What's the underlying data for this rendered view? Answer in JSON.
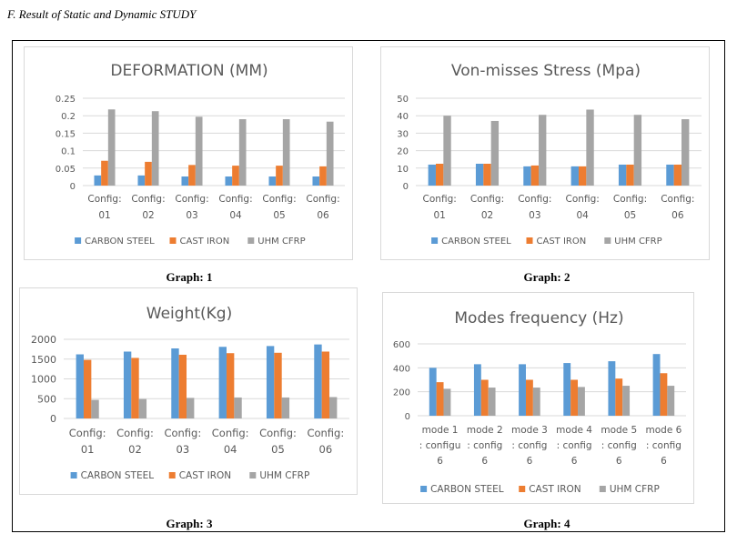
{
  "heading": "F.  Result of Static and Dynamic STUDY",
  "colors": {
    "carbon_steel": "#5b9bd5",
    "cast_iron": "#ed7d31",
    "uhm_cfrp": "#a5a5a5",
    "grid": "#d9d9d9",
    "text": "#595959"
  },
  "captions": [
    "Graph:  1",
    "Graph:  2",
    "Graph:  3",
    "Graph:  4"
  ],
  "chart_data": [
    {
      "type": "bar",
      "title": "DEFORMATION (MM)",
      "categories": [
        [
          "Config:",
          "01"
        ],
        [
          "Config:",
          "02"
        ],
        [
          "Config:",
          "03"
        ],
        [
          "Config:",
          "04"
        ],
        [
          "Config:",
          "05"
        ],
        [
          "Config:",
          "06"
        ]
      ],
      "series": [
        {
          "name": "CARBON STEEL",
          "values": [
            0.029,
            0.029,
            0.026,
            0.026,
            0.026,
            0.026
          ]
        },
        {
          "name": "CAST IRON",
          "values": [
            0.071,
            0.068,
            0.059,
            0.057,
            0.057,
            0.055
          ]
        },
        {
          "name": "UHM CFRP",
          "values": [
            0.218,
            0.213,
            0.197,
            0.19,
            0.19,
            0.183
          ]
        }
      ],
      "ylim": [
        0,
        0.25
      ],
      "yticks": [
        "0",
        "0.05",
        "0.1",
        "0.15",
        "0.2",
        "0.25"
      ],
      "grid": true,
      "legend_position": "bottom"
    },
    {
      "type": "bar",
      "title": "Von-misses Stress (Mpa)",
      "categories": [
        [
          "Config:",
          "01"
        ],
        [
          "Config:",
          "02"
        ],
        [
          "Config:",
          "03"
        ],
        [
          "Config:",
          "04"
        ],
        [
          "Config:",
          "05"
        ],
        [
          "Config:",
          "06"
        ]
      ],
      "series": [
        {
          "name": "CARBON STEEL",
          "values": [
            12,
            12.5,
            11,
            11,
            12,
            12
          ]
        },
        {
          "name": "CAST IRON",
          "values": [
            12.5,
            12.5,
            11.5,
            11,
            12,
            12
          ]
        },
        {
          "name": "UHM CFRP",
          "values": [
            40,
            37,
            40.5,
            43.5,
            40.5,
            38
          ]
        }
      ],
      "ylim": [
        0,
        50
      ],
      "yticks": [
        "0",
        "10",
        "20",
        "30",
        "40",
        "50"
      ],
      "grid": true,
      "legend_position": "bottom"
    },
    {
      "type": "bar",
      "title": "Weight(Kg)",
      "categories": [
        [
          "Config:",
          "01"
        ],
        [
          "Config:",
          "02"
        ],
        [
          "Config:",
          "03"
        ],
        [
          "Config:",
          "04"
        ],
        [
          "Config:",
          "05"
        ],
        [
          "Config:",
          "06"
        ]
      ],
      "series": [
        {
          "name": "CARBON STEEL",
          "values": [
            1620,
            1690,
            1770,
            1810,
            1830,
            1870
          ]
        },
        {
          "name": "CAST IRON",
          "values": [
            1480,
            1530,
            1610,
            1650,
            1660,
            1690
          ]
        },
        {
          "name": "UHM CFRP",
          "values": [
            470,
            490,
            520,
            530,
            530,
            540
          ]
        }
      ],
      "ylim": [
        0,
        2000
      ],
      "yticks": [
        "0",
        "500",
        "1000",
        "1500",
        "2000"
      ],
      "grid": true,
      "legend_position": "bottom"
    },
    {
      "type": "bar",
      "title": "Modes frequency (Hz)",
      "categories": [
        [
          "mode 1",
          ": configu",
          "6"
        ],
        [
          "mode 2",
          ": config",
          "6"
        ],
        [
          "mode 3",
          ": config",
          "6"
        ],
        [
          "mode 4",
          ": config",
          "6"
        ],
        [
          "mode 5",
          ": config",
          "6"
        ],
        [
          "mode 6",
          ": config",
          "6"
        ]
      ],
      "series": [
        {
          "name": "CARBON STEEL",
          "values": [
            400,
            430,
            430,
            440,
            455,
            515
          ]
        },
        {
          "name": "CAST IRON",
          "values": [
            280,
            300,
            300,
            300,
            310,
            355
          ]
        },
        {
          "name": "UHM CFRP",
          "values": [
            225,
            235,
            235,
            240,
            250,
            250
          ]
        }
      ],
      "ylim": [
        0,
        600
      ],
      "yticks": [
        "0",
        "200",
        "400",
        "600"
      ],
      "grid": true,
      "legend_position": "bottom"
    }
  ]
}
